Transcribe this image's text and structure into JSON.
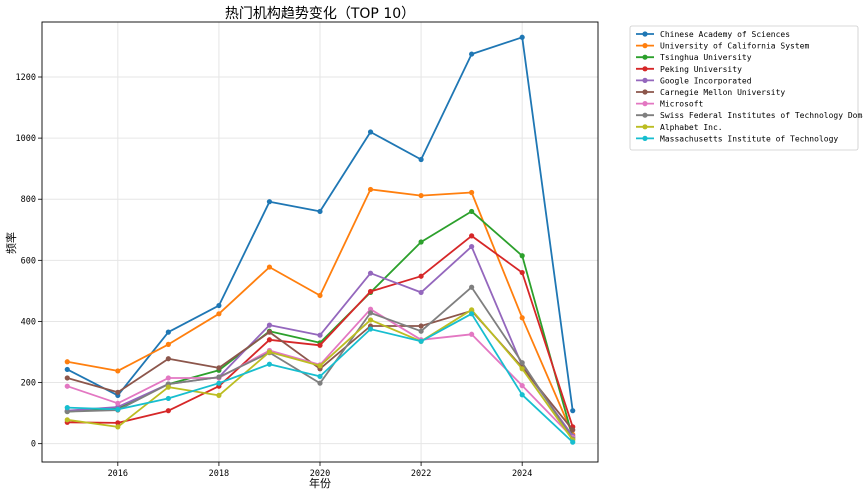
{
  "chart_data": {
    "type": "line",
    "title": "热门机构趋势变化（TOP 10）",
    "xlabel": "年份",
    "ylabel": "频率",
    "x": [
      2015,
      2016,
      2017,
      2018,
      2019,
      2020,
      2021,
      2022,
      2023,
      2024,
      2025
    ],
    "xlim": [
      2014.5,
      2025.5
    ],
    "ylim": [
      -60,
      1380
    ],
    "xticks": [
      2016,
      2018,
      2020,
      2022,
      2024
    ],
    "yticks": [
      0,
      200,
      400,
      600,
      800,
      1000,
      1200
    ],
    "grid": true,
    "legend_position": "outside-right-top",
    "series": [
      {
        "name": "Chinese Academy of Sciences",
        "color": "#1f77b4",
        "values": [
          243,
          158,
          365,
          452,
          792,
          760,
          1020,
          930,
          1275,
          1330,
          108
        ]
      },
      {
        "name": "University of California System",
        "color": "#ff7f0e",
        "values": [
          268,
          238,
          325,
          425,
          578,
          485,
          832,
          812,
          822,
          412,
          30
        ]
      },
      {
        "name": "Tsinghua University",
        "color": "#2ca02c",
        "values": [
          105,
          115,
          195,
          240,
          368,
          330,
          495,
          660,
          760,
          615,
          20
        ]
      },
      {
        "name": "Peking University",
        "color": "#d62728",
        "values": [
          70,
          68,
          108,
          188,
          340,
          322,
          498,
          548,
          680,
          560,
          55
        ]
      },
      {
        "name": "Google Incorporated",
        "color": "#9467bd",
        "values": [
          108,
          120,
          195,
          218,
          388,
          355,
          558,
          495,
          645,
          255,
          25
        ]
      },
      {
        "name": "Carnegie Mellon University",
        "color": "#8c564b",
        "values": [
          215,
          168,
          278,
          248,
          365,
          245,
          385,
          385,
          435,
          250,
          45
        ]
      },
      {
        "name": "Microsoft",
        "color": "#e377c2",
        "values": [
          188,
          132,
          215,
          215,
          305,
          258,
          440,
          340,
          358,
          190,
          20
        ]
      },
      {
        "name": "Swiss Federal Institutes of Technology Domain",
        "color": "#7f7f7f",
        "values": [
          105,
          110,
          195,
          218,
          298,
          198,
          428,
          368,
          512,
          265,
          15
        ]
      },
      {
        "name": "Alphabet Inc.",
        "color": "#bcbd22",
        "values": [
          78,
          55,
          185,
          158,
          300,
          255,
          405,
          335,
          438,
          245,
          12
        ]
      },
      {
        "name": "Massachusetts Institute of Technology",
        "color": "#17becf",
        "values": [
          118,
          112,
          148,
          198,
          260,
          220,
          375,
          335,
          425,
          160,
          5
        ]
      }
    ]
  }
}
